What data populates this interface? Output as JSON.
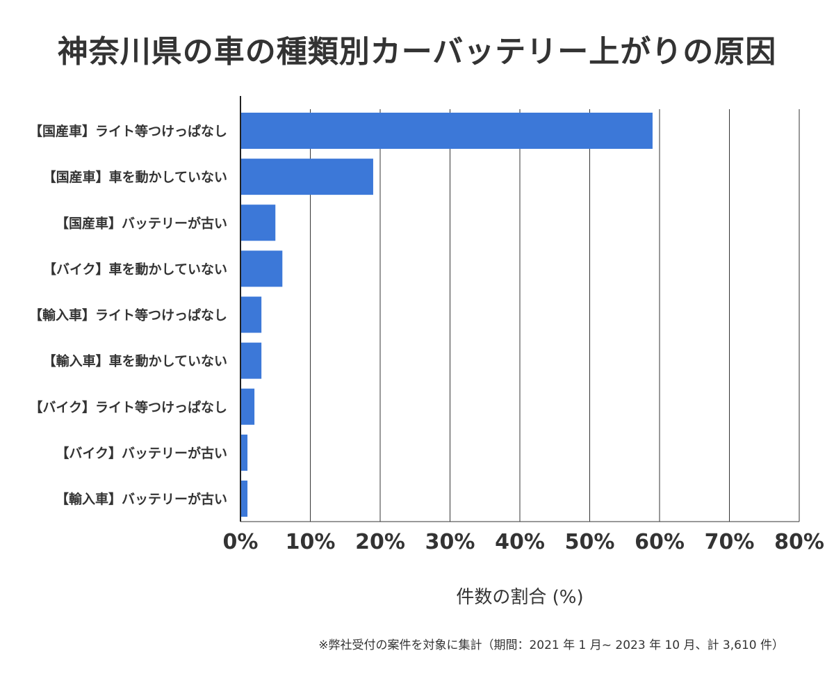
{
  "chart_data": {
    "type": "bar",
    "orientation": "horizontal",
    "title": "神奈川県の車の種類別カーバッテリー上がりの原因",
    "xlabel": "件数の割合 (%)",
    "ylabel": "",
    "categories": [
      "【国産車】ライト等つけっぱなし",
      "【国産車】車を動かしていない",
      "【国産車】バッテリーが古い",
      "【バイク】車を動かしていない",
      "【輸入車】ライト等つけっぱなし",
      "【輸入車】車を動かしていない",
      "【バイク】ライト等つけっぱなし",
      "【バイク】バッテリーが古い",
      "【輸入車】バッテリーが古い"
    ],
    "values": [
      59,
      19,
      5,
      6,
      3,
      3,
      2,
      1,
      1
    ],
    "xlim": [
      0,
      80
    ],
    "xticks": [
      "0%",
      "10%",
      "20%",
      "30%",
      "40%",
      "50%",
      "60%",
      "70%",
      "80%"
    ],
    "grid": true,
    "bar_color": "#3c78d8",
    "note": "※弊社受付の案件を対象に集計（期間：2021 年 1 月~ 2023 年 10 月、計 3,610 件）"
  }
}
